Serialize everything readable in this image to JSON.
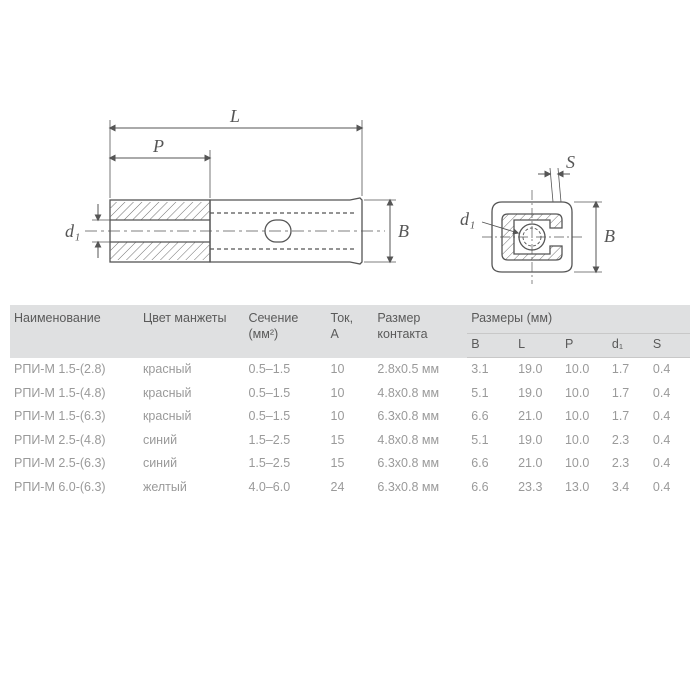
{
  "diagram": {
    "labels": {
      "L": "L",
      "P": "P",
      "d1": "d₁",
      "B": "B",
      "S": "S"
    },
    "stroke_color": "#555555",
    "stroke_width": 1.2
  },
  "table": {
    "columns": {
      "name": "Наименование",
      "color": "Цвет манжеты",
      "section": "Сечение\n(мм²)",
      "current": "Ток,\nA",
      "contact": "Размер\nконтакта",
      "dims_group": "Размеры (мм)",
      "dims": [
        "B",
        "L",
        "P",
        "d₁",
        "S"
      ]
    },
    "col_widths": [
      "110",
      "90",
      "70",
      "40",
      "80",
      "40",
      "40",
      "40",
      "35",
      "35"
    ],
    "rows": [
      {
        "name": "РПИ-М 1.5-(2.8)",
        "color": "красный",
        "section": "0.5–1.5",
        "current": "10",
        "contact": "2.8х0.5 мм",
        "B": "3.1",
        "L": "19.0",
        "P": "10.0",
        "d1": "1.7",
        "S": "0.4"
      },
      {
        "name": "РПИ-М 1.5-(4.8)",
        "color": "красный",
        "section": "0.5–1.5",
        "current": "10",
        "contact": "4.8х0.8 мм",
        "B": "5.1",
        "L": "19.0",
        "P": "10.0",
        "d1": "1.7",
        "S": "0.4"
      },
      {
        "name": "РПИ-М 1.5-(6.3)",
        "color": "красный",
        "section": "0.5–1.5",
        "current": "10",
        "contact": "6.3х0.8 мм",
        "B": "6.6",
        "L": "21.0",
        "P": "10.0",
        "d1": "1.7",
        "S": "0.4"
      },
      {
        "name": "РПИ-М 2.5-(4.8)",
        "color": "синий",
        "section": "1.5–2.5",
        "current": "15",
        "contact": "4.8х0.8 мм",
        "B": "5.1",
        "L": "19.0",
        "P": "10.0",
        "d1": "2.3",
        "S": "0.4"
      },
      {
        "name": "РПИ-М 2.5-(6.3)",
        "color": "синий",
        "section": "1.5–2.5",
        "current": "15",
        "contact": "6.3х0.8 мм",
        "B": "6.6",
        "L": "21.0",
        "P": "10.0",
        "d1": "2.3",
        "S": "0.4"
      },
      {
        "name": "РПИ-М 6.0-(6.3)",
        "color": "желтый",
        "section": "4.0–6.0",
        "current": "24",
        "contact": "6.3х0.8 мм",
        "B": "6.6",
        "L": "23.3",
        "P": "13.0",
        "d1": "3.4",
        "S": "0.4"
      }
    ],
    "header_bg": "#dfe0e1",
    "body_text_color": "#9a9a9a",
    "header_text_color": "#5a5a5a",
    "font_size": 12.5
  }
}
